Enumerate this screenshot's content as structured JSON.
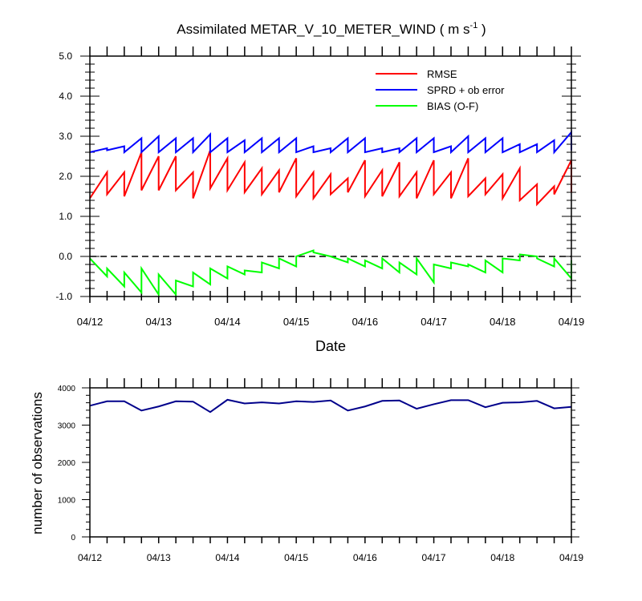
{
  "chart_data": [
    {
      "type": "line",
      "title": "Assimilated METAR_V_10_METER_WIND ( m s",
      "title_unit_exp": "-1",
      "title_close": " )",
      "xlabel": "Date",
      "ylabel": "",
      "ylim": [
        -1.0,
        5.0
      ],
      "yticks": [
        "-1.0",
        "0.0",
        "1.0",
        "2.0",
        "3.0",
        "4.0",
        "5.0"
      ],
      "xticklabels": [
        "04/12",
        "04/13",
        "04/14",
        "04/15",
        "04/16",
        "04/17",
        "04/18",
        "04/19"
      ],
      "xlim": [
        0,
        7
      ],
      "zero_line": {
        "y": 0.0,
        "style": "dashed"
      },
      "legend_position": "top-right",
      "series": [
        {
          "name": "RMSE",
          "color": "#ff0000",
          "x": [
            0,
            0.25,
            0.5,
            0.75,
            1,
            1.25,
            1.5,
            1.75,
            2,
            2.25,
            2.5,
            2.75,
            3,
            3.25,
            3.5,
            3.75,
            4,
            4.25,
            4.5,
            4.75,
            5,
            5.25,
            5.5,
            5.75,
            6,
            6.25,
            6.5,
            6.75,
            7
          ],
          "values": [
            1.45,
            1.55,
            1.5,
            1.65,
            1.65,
            1.65,
            1.45,
            1.7,
            1.65,
            1.6,
            1.55,
            1.6,
            1.5,
            1.45,
            1.55,
            1.6,
            1.5,
            1.5,
            1.5,
            1.45,
            1.55,
            1.45,
            1.5,
            1.55,
            1.45,
            1.4,
            1.3,
            1.55,
            1.6
          ],
          "peaks": [
            2.1,
            2.1,
            2.6,
            2.5,
            2.5,
            2.1,
            2.65,
            2.45,
            2.35,
            2.2,
            2.15,
            2.45,
            2.1,
            2.05,
            1.95,
            2.4,
            2.15,
            2.35,
            2.1,
            2.4,
            2.1,
            2.45,
            1.95,
            2.05,
            2.2,
            1.8,
            1.75,
            2.4,
            2.35
          ]
        },
        {
          "name": "SPRD + ob error",
          "color": "#0000ff",
          "x": [
            0,
            0.25,
            0.5,
            0.75,
            1,
            1.25,
            1.5,
            1.75,
            2,
            2.25,
            2.5,
            2.75,
            3,
            3.25,
            3.5,
            3.75,
            4,
            4.25,
            4.5,
            4.75,
            5,
            5.25,
            5.5,
            5.75,
            6,
            6.25,
            6.5,
            6.75,
            7
          ],
          "values": [
            2.6,
            2.65,
            2.6,
            2.6,
            2.6,
            2.6,
            2.6,
            2.6,
            2.6,
            2.6,
            2.6,
            2.6,
            2.6,
            2.6,
            2.6,
            2.6,
            2.6,
            2.6,
            2.6,
            2.6,
            2.6,
            2.6,
            2.6,
            2.6,
            2.6,
            2.6,
            2.6,
            2.6,
            2.65
          ],
          "peaks": [
            2.7,
            2.75,
            2.95,
            3.0,
            2.95,
            2.95,
            3.05,
            2.95,
            2.9,
            2.95,
            2.95,
            2.95,
            2.75,
            2.7,
            2.95,
            2.95,
            2.7,
            2.7,
            2.95,
            2.95,
            2.75,
            3.0,
            2.95,
            2.95,
            2.8,
            2.8,
            2.9,
            3.1,
            3.05
          ]
        },
        {
          "name": "BIAS (O-F)",
          "color": "#00ff00",
          "x": [
            0,
            0.25,
            0.5,
            0.75,
            1,
            1.25,
            1.5,
            1.75,
            2,
            2.25,
            2.5,
            2.75,
            3,
            3.25,
            3.5,
            3.75,
            4,
            4.25,
            4.5,
            4.75,
            5,
            5.25,
            5.5,
            5.75,
            6,
            6.25,
            6.5,
            6.75,
            7
          ],
          "values": [
            -0.05,
            -0.3,
            -0.4,
            -0.3,
            -0.45,
            -0.6,
            -0.4,
            -0.3,
            -0.25,
            -0.35,
            -0.15,
            -0.05,
            0.0,
            0.1,
            0.0,
            -0.05,
            -0.1,
            -0.05,
            -0.15,
            -0.05,
            -0.2,
            -0.15,
            -0.2,
            -0.1,
            -0.05,
            0.05,
            -0.05,
            -0.05,
            -0.1
          ],
          "peaks": [
            -0.5,
            -0.75,
            -0.9,
            -0.95,
            -0.95,
            -0.75,
            -0.7,
            -0.55,
            -0.45,
            -0.4,
            -0.3,
            -0.25,
            0.15,
            0.0,
            -0.15,
            -0.25,
            -0.3,
            -0.4,
            -0.45,
            -0.65,
            -0.3,
            -0.25,
            -0.4,
            -0.4,
            -0.1,
            0.0,
            -0.25,
            -0.55,
            -0.55
          ]
        }
      ]
    },
    {
      "type": "line",
      "title": "",
      "xlabel": "",
      "ylabel": "number of observations",
      "ylim": [
        0,
        4000
      ],
      "yticks": [
        "0",
        "1000",
        "2000",
        "3000",
        "4000"
      ],
      "xticklabels": [
        "04/12",
        "04/13",
        "04/14",
        "04/15",
        "04/16",
        "04/17",
        "04/18",
        "04/19"
      ],
      "xlim": [
        0,
        7
      ],
      "series": [
        {
          "name": "",
          "color": "#00008b",
          "x": [
            0,
            0.25,
            0.5,
            0.75,
            1,
            1.25,
            1.5,
            1.75,
            2,
            2.25,
            2.5,
            2.75,
            3,
            3.25,
            3.5,
            3.75,
            4,
            4.25,
            4.5,
            4.75,
            5,
            5.25,
            5.5,
            5.75,
            6,
            6.25,
            6.5,
            6.75,
            7
          ],
          "values": [
            3520,
            3640,
            3640,
            3390,
            3500,
            3640,
            3630,
            3350,
            3680,
            3580,
            3610,
            3580,
            3640,
            3620,
            3660,
            3390,
            3500,
            3650,
            3660,
            3440,
            3560,
            3670,
            3670,
            3480,
            3600,
            3610,
            3650,
            3450,
            3490
          ]
        }
      ]
    }
  ]
}
